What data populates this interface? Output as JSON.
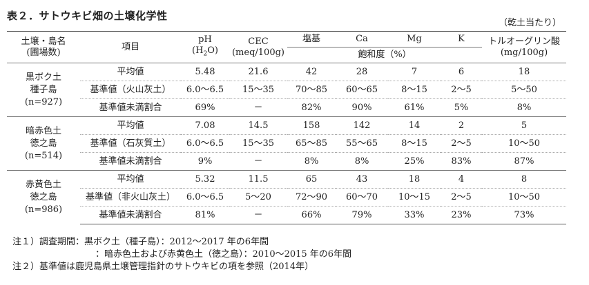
{
  "title": "表２．サトウキビ畑の土壌化学性",
  "unit_note": "（乾土当たり）",
  "headers": {
    "soil": "土壌・島名",
    "soil_sub": "(圃場数)",
    "item": "項目",
    "ph": "pH",
    "ph_sub_pre": "(H",
    "ph_sub_2": "2",
    "ph_sub_post": "O)",
    "cec": "CEC",
    "cec_unit": "(meq/100g)",
    "base": "塩基",
    "ca": "Ca",
    "mg": "Mg",
    "k": "K",
    "sat": "飽和度（%）",
    "truog": "トルオーグリン酸",
    "truog_unit": "(mg/100g)"
  },
  "groups": [
    {
      "soil": "黒ボク土",
      "island": "種子島",
      "count": "(n=927)",
      "rows": [
        {
          "item": "平均値",
          "ph": "5.48",
          "cec": "21.6",
          "base": "42",
          "ca": "28",
          "mg": "7",
          "k": "6",
          "p": "18"
        },
        {
          "item": "基準値（火山灰土）",
          "ph": "6.0～6.5",
          "cec": "15～35",
          "base": "70～85",
          "ca": "60～65",
          "mg": "8～15",
          "k": "2～5",
          "p": "5～50"
        },
        {
          "item": "基準値未満割合",
          "ph": "69%",
          "cec": "－",
          "base": "82%",
          "ca": "90%",
          "mg": "61%",
          "k": "5%",
          "p": "8%"
        }
      ]
    },
    {
      "soil": "暗赤色土",
      "island": "徳之島",
      "count": "(n=514)",
      "rows": [
        {
          "item": "平均値",
          "ph": "7.08",
          "cec": "14.5",
          "base": "158",
          "ca": "142",
          "mg": "14",
          "k": "2",
          "p": "5"
        },
        {
          "item": "基準値（石灰質土）",
          "ph": "6.0～6.5",
          "cec": "15～35",
          "base": "65～85",
          "ca": "55～65",
          "mg": "8～15",
          "k": "2～5",
          "p": "10～50"
        },
        {
          "item": "基準値未満割合",
          "ph": "9%",
          "cec": "－",
          "base": "8%",
          "ca": "8%",
          "mg": "25%",
          "k": "83%",
          "p": "87%"
        }
      ]
    },
    {
      "soil": "赤黄色土",
      "island": "徳之島",
      "count": "(n=986)",
      "rows": [
        {
          "item": "平均値",
          "ph": "5.32",
          "cec": "11.5",
          "base": "65",
          "ca": "43",
          "mg": "18",
          "k": "4",
          "p": "8"
        },
        {
          "item": "基準値（非火山灰土）",
          "ph": "6.0～6.5",
          "cec": "5～20",
          "base": "72～90",
          "ca": "60～70",
          "mg": "10～15",
          "k": "2～5",
          "p": "10～50"
        },
        {
          "item": "基準値未満割合",
          "ph": "81%",
          "cec": "－",
          "base": "66%",
          "ca": "79%",
          "mg": "33%",
          "k": "23%",
          "p": "73%"
        }
      ]
    }
  ],
  "notes": {
    "n1a": "注１）調査期間：黒ボク土（種子島）：2012～2017 年の6年間",
    "n1b": "：暗赤色土および赤黄色土（徳之島）：2010～2015 年の6年間",
    "n2": "注２）基準値は鹿児島県土壌管理指針のサトウキビの項を参照（2014年）"
  }
}
